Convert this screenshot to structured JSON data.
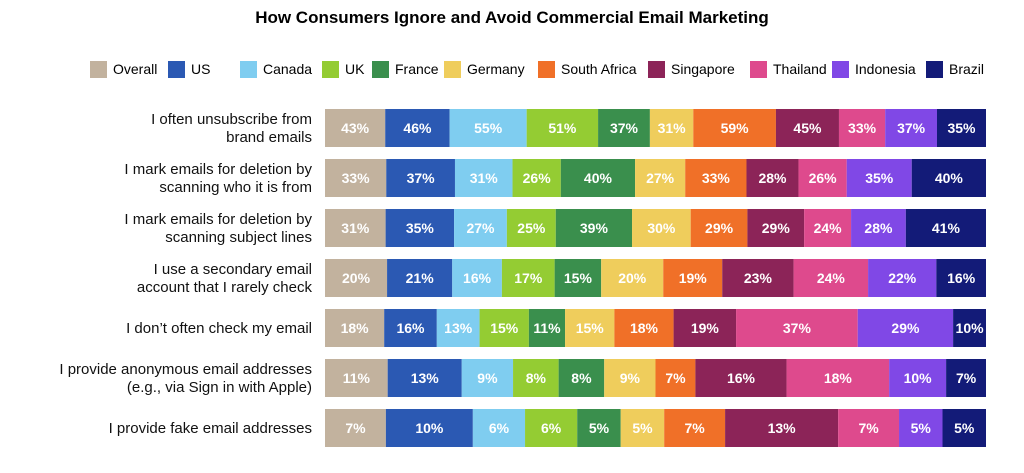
{
  "chart_data": {
    "type": "bar",
    "orientation": "horizontal",
    "stacked": true,
    "title": "How Consumers Ignore and Avoid Commercial Email Marketing",
    "legend_position": "top",
    "grid": false,
    "categories": [
      [
        "I often unsubscribe from",
        "brand emails"
      ],
      [
        "I mark emails for deletion by",
        "scanning who it is from"
      ],
      [
        "I mark emails for deletion by",
        "scanning subject lines"
      ],
      [
        "I use a secondary email",
        "account that I rarely check"
      ],
      [
        "I don’t often check my email"
      ],
      [
        "I provide anonymous email addresses",
        "(e.g., via Sign in with Apple)"
      ],
      [
        "I provide fake email addresses"
      ]
    ],
    "series": [
      {
        "name": "Overall",
        "color": "#c2b29e",
        "values": [
          43,
          33,
          31,
          20,
          18,
          11,
          7
        ]
      },
      {
        "name": "US",
        "color": "#2b59b3",
        "values": [
          46,
          37,
          35,
          21,
          16,
          13,
          10
        ]
      },
      {
        "name": "Canada",
        "color": "#7fcdf0",
        "values": [
          55,
          31,
          27,
          16,
          13,
          9,
          6
        ]
      },
      {
        "name": "UK",
        "color": "#94cc33",
        "values": [
          51,
          26,
          25,
          17,
          15,
          8,
          6
        ]
      },
      {
        "name": "France",
        "color": "#3a8f4d",
        "values": [
          37,
          40,
          39,
          15,
          11,
          8,
          5
        ]
      },
      {
        "name": "Germany",
        "color": "#efcd5c",
        "values": [
          31,
          27,
          30,
          20,
          15,
          9,
          5
        ]
      },
      {
        "name": "South Africa",
        "color": "#f07028",
        "values": [
          59,
          33,
          29,
          19,
          18,
          7,
          7
        ]
      },
      {
        "name": "Singapore",
        "color": "#8c2458",
        "values": [
          45,
          28,
          29,
          23,
          19,
          16,
          13
        ]
      },
      {
        "name": "Thailand",
        "color": "#de4a8d",
        "values": [
          33,
          26,
          24,
          24,
          37,
          18,
          7
        ]
      },
      {
        "name": "Indonesia",
        "color": "#8048e6",
        "values": [
          37,
          35,
          28,
          22,
          29,
          10,
          5
        ]
      },
      {
        "name": "Brazil",
        "color": "#131b78",
        "values": [
          35,
          40,
          41,
          16,
          10,
          7,
          5
        ]
      }
    ],
    "value_suffix": "%"
  }
}
